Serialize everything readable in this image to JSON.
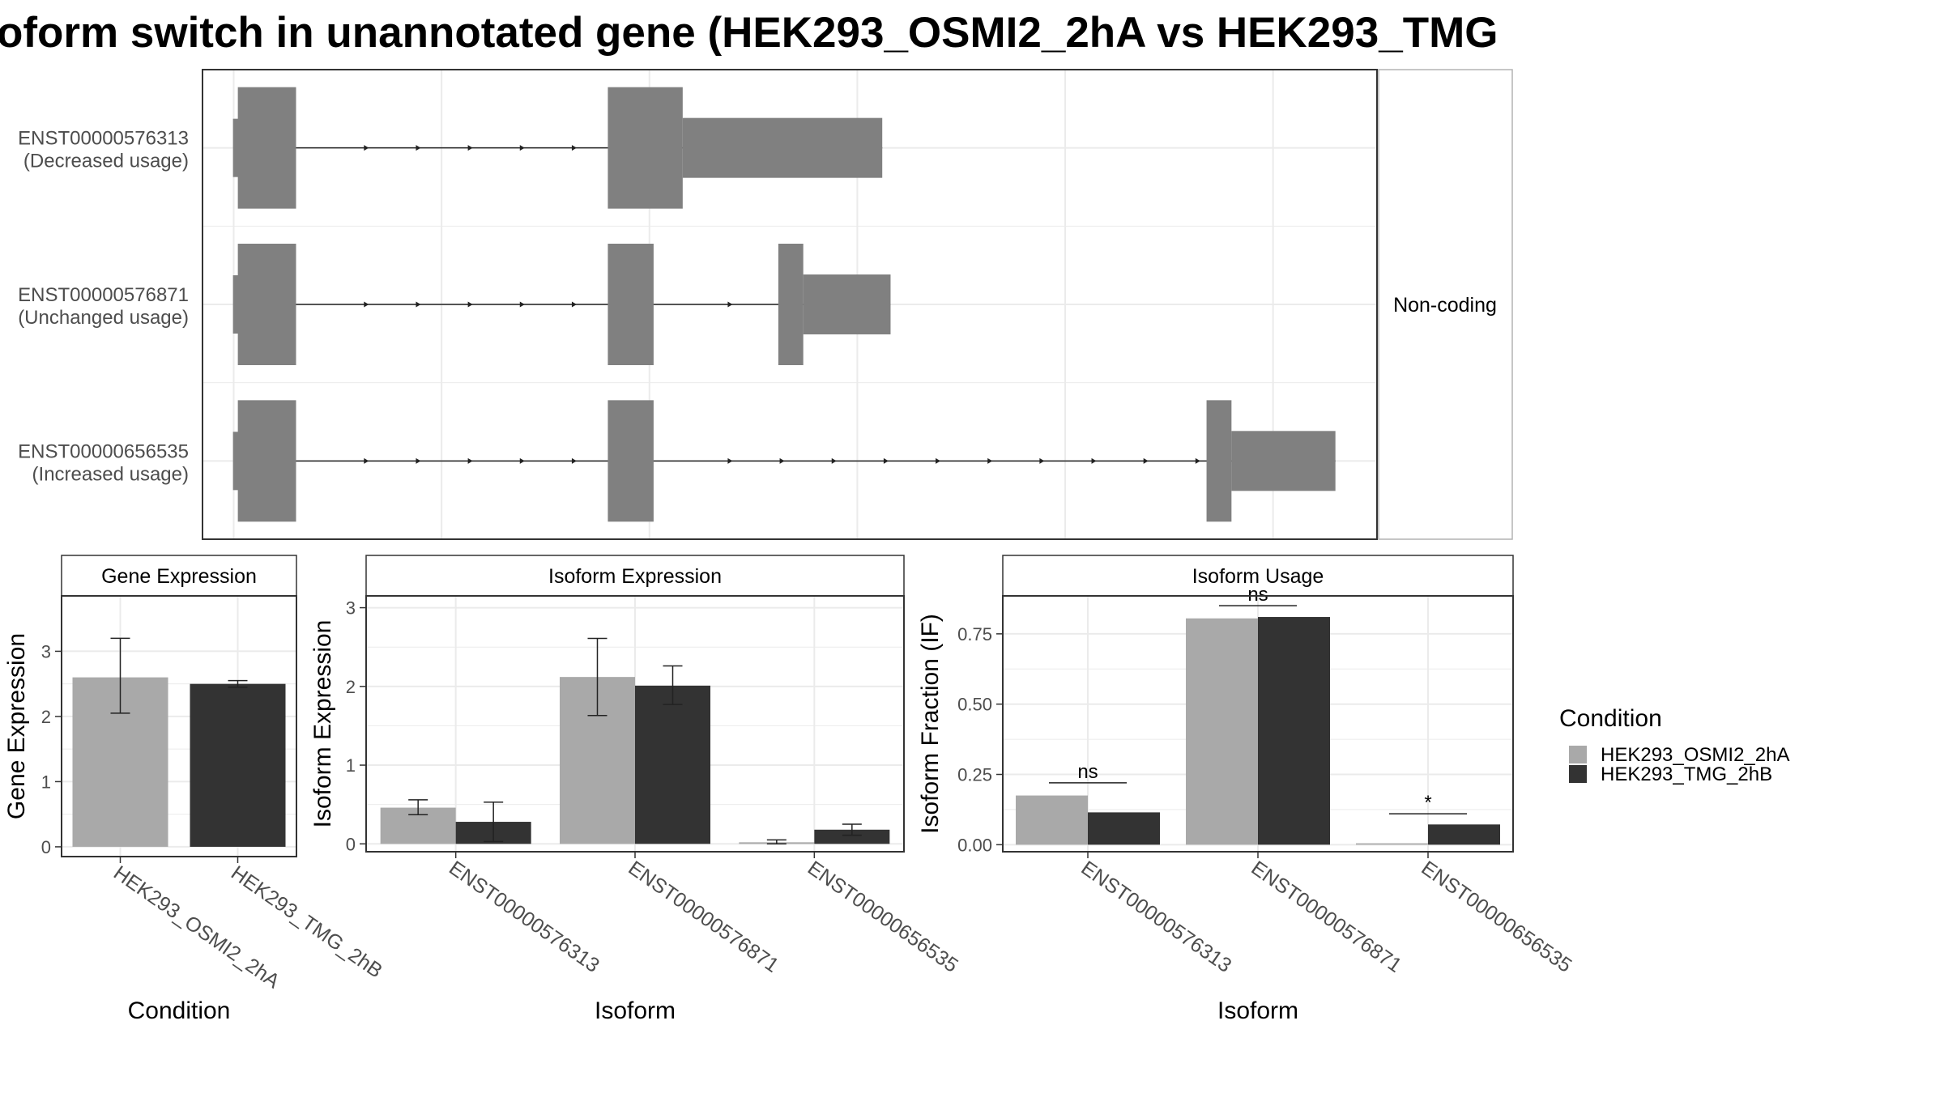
{
  "title": "oform switch in unannotated gene (HEK293_OSMI2_2hA vs HEK293_TMG",
  "colors": {
    "cond_a": "#a9a9a9",
    "cond_b": "#333333",
    "exon": "#808080",
    "grid": "#ebebeb"
  },
  "legend": {
    "title": "Condition",
    "items": [
      {
        "label": "HEK293_OSMI2_2hA",
        "color": "#a9a9a9"
      },
      {
        "label": "HEK293_TMG_2hB",
        "color": "#333333"
      }
    ]
  },
  "chart_data": [
    {
      "type": "gene-structure",
      "strip_label": "Non-coding",
      "tracks": [
        {
          "id": "ENST00000576313",
          "usage_label": "(Decreased usage)",
          "exons": [
            {
              "start": 0.02,
              "end": 0.3,
              "kind": "cds"
            },
            {
              "start": 1.8,
              "end": 2.16,
              "kind": "cds"
            },
            {
              "start": 2.16,
              "end": 3.12,
              "kind": "utr"
            }
          ]
        },
        {
          "id": "ENST00000576871",
          "usage_label": "(Unchanged usage)",
          "exons": [
            {
              "start": 0.02,
              "end": 0.3,
              "kind": "cds"
            },
            {
              "start": 1.8,
              "end": 2.02,
              "kind": "cds"
            },
            {
              "start": 2.62,
              "end": 2.74,
              "kind": "cds"
            },
            {
              "start": 2.74,
              "end": 3.16,
              "kind": "utr"
            }
          ]
        },
        {
          "id": "ENST00000656535",
          "usage_label": "(Increased usage)",
          "exons": [
            {
              "start": 0.02,
              "end": 0.3,
              "kind": "cds"
            },
            {
              "start": 1.8,
              "end": 2.02,
              "kind": "cds"
            },
            {
              "start": 4.68,
              "end": 4.8,
              "kind": "cds"
            },
            {
              "start": 4.8,
              "end": 5.3,
              "kind": "utr"
            }
          ]
        }
      ]
    },
    {
      "type": "bar",
      "strip": "Gene Expression",
      "xlabel": "Condition",
      "ylabel": "Gene Expression",
      "ylim": [
        -0.15,
        3.85
      ],
      "yticks": [
        0,
        1,
        2,
        3
      ],
      "categories": [
        "HEK293_OSMI2_2hA",
        "HEK293_TMG_2hB"
      ],
      "values": [
        2.6,
        2.5
      ],
      "err_low": [
        2.05,
        2.45
      ],
      "err_high": [
        3.2,
        2.55
      ]
    },
    {
      "type": "bar",
      "strip": "Isoform Expression",
      "xlabel": "Isoform",
      "ylabel": "Isoform Expression",
      "ylim": [
        -0.1,
        3.15
      ],
      "yticks": [
        0,
        1,
        2,
        3
      ],
      "categories": [
        "ENST00000576313",
        "ENST00000576871",
        "ENST00000656535"
      ],
      "series": [
        {
          "name": "HEK293_OSMI2_2hA",
          "values": [
            0.46,
            2.12,
            0.02
          ],
          "err_low": [
            0.37,
            1.63,
            0.0
          ],
          "err_high": [
            0.56,
            2.61,
            0.05
          ]
        },
        {
          "name": "HEK293_TMG_2hB",
          "values": [
            0.28,
            2.01,
            0.18
          ],
          "err_low": [
            0.03,
            1.77,
            0.11
          ],
          "err_high": [
            0.53,
            2.26,
            0.25
          ]
        }
      ]
    },
    {
      "type": "bar",
      "strip": "Isoform Usage",
      "xlabel": "Isoform",
      "ylabel": "Isoform Fraction (IF)",
      "ylim": [
        -0.025,
        0.885
      ],
      "yticks": [
        "0.00",
        "0.25",
        "0.50",
        "0.75"
      ],
      "categories": [
        "ENST00000576313",
        "ENST00000576871",
        "ENST00000656535"
      ],
      "series": [
        {
          "name": "HEK293_OSMI2_2hA",
          "values": [
            0.175,
            0.805,
            0.005
          ]
        },
        {
          "name": "HEK293_TMG_2hB",
          "values": [
            0.115,
            0.81,
            0.072
          ]
        }
      ],
      "significance": [
        {
          "label": "ns",
          "y": 0.22
        },
        {
          "label": "ns",
          "y": 0.85
        },
        {
          "label": "*",
          "y": 0.11
        }
      ]
    }
  ]
}
